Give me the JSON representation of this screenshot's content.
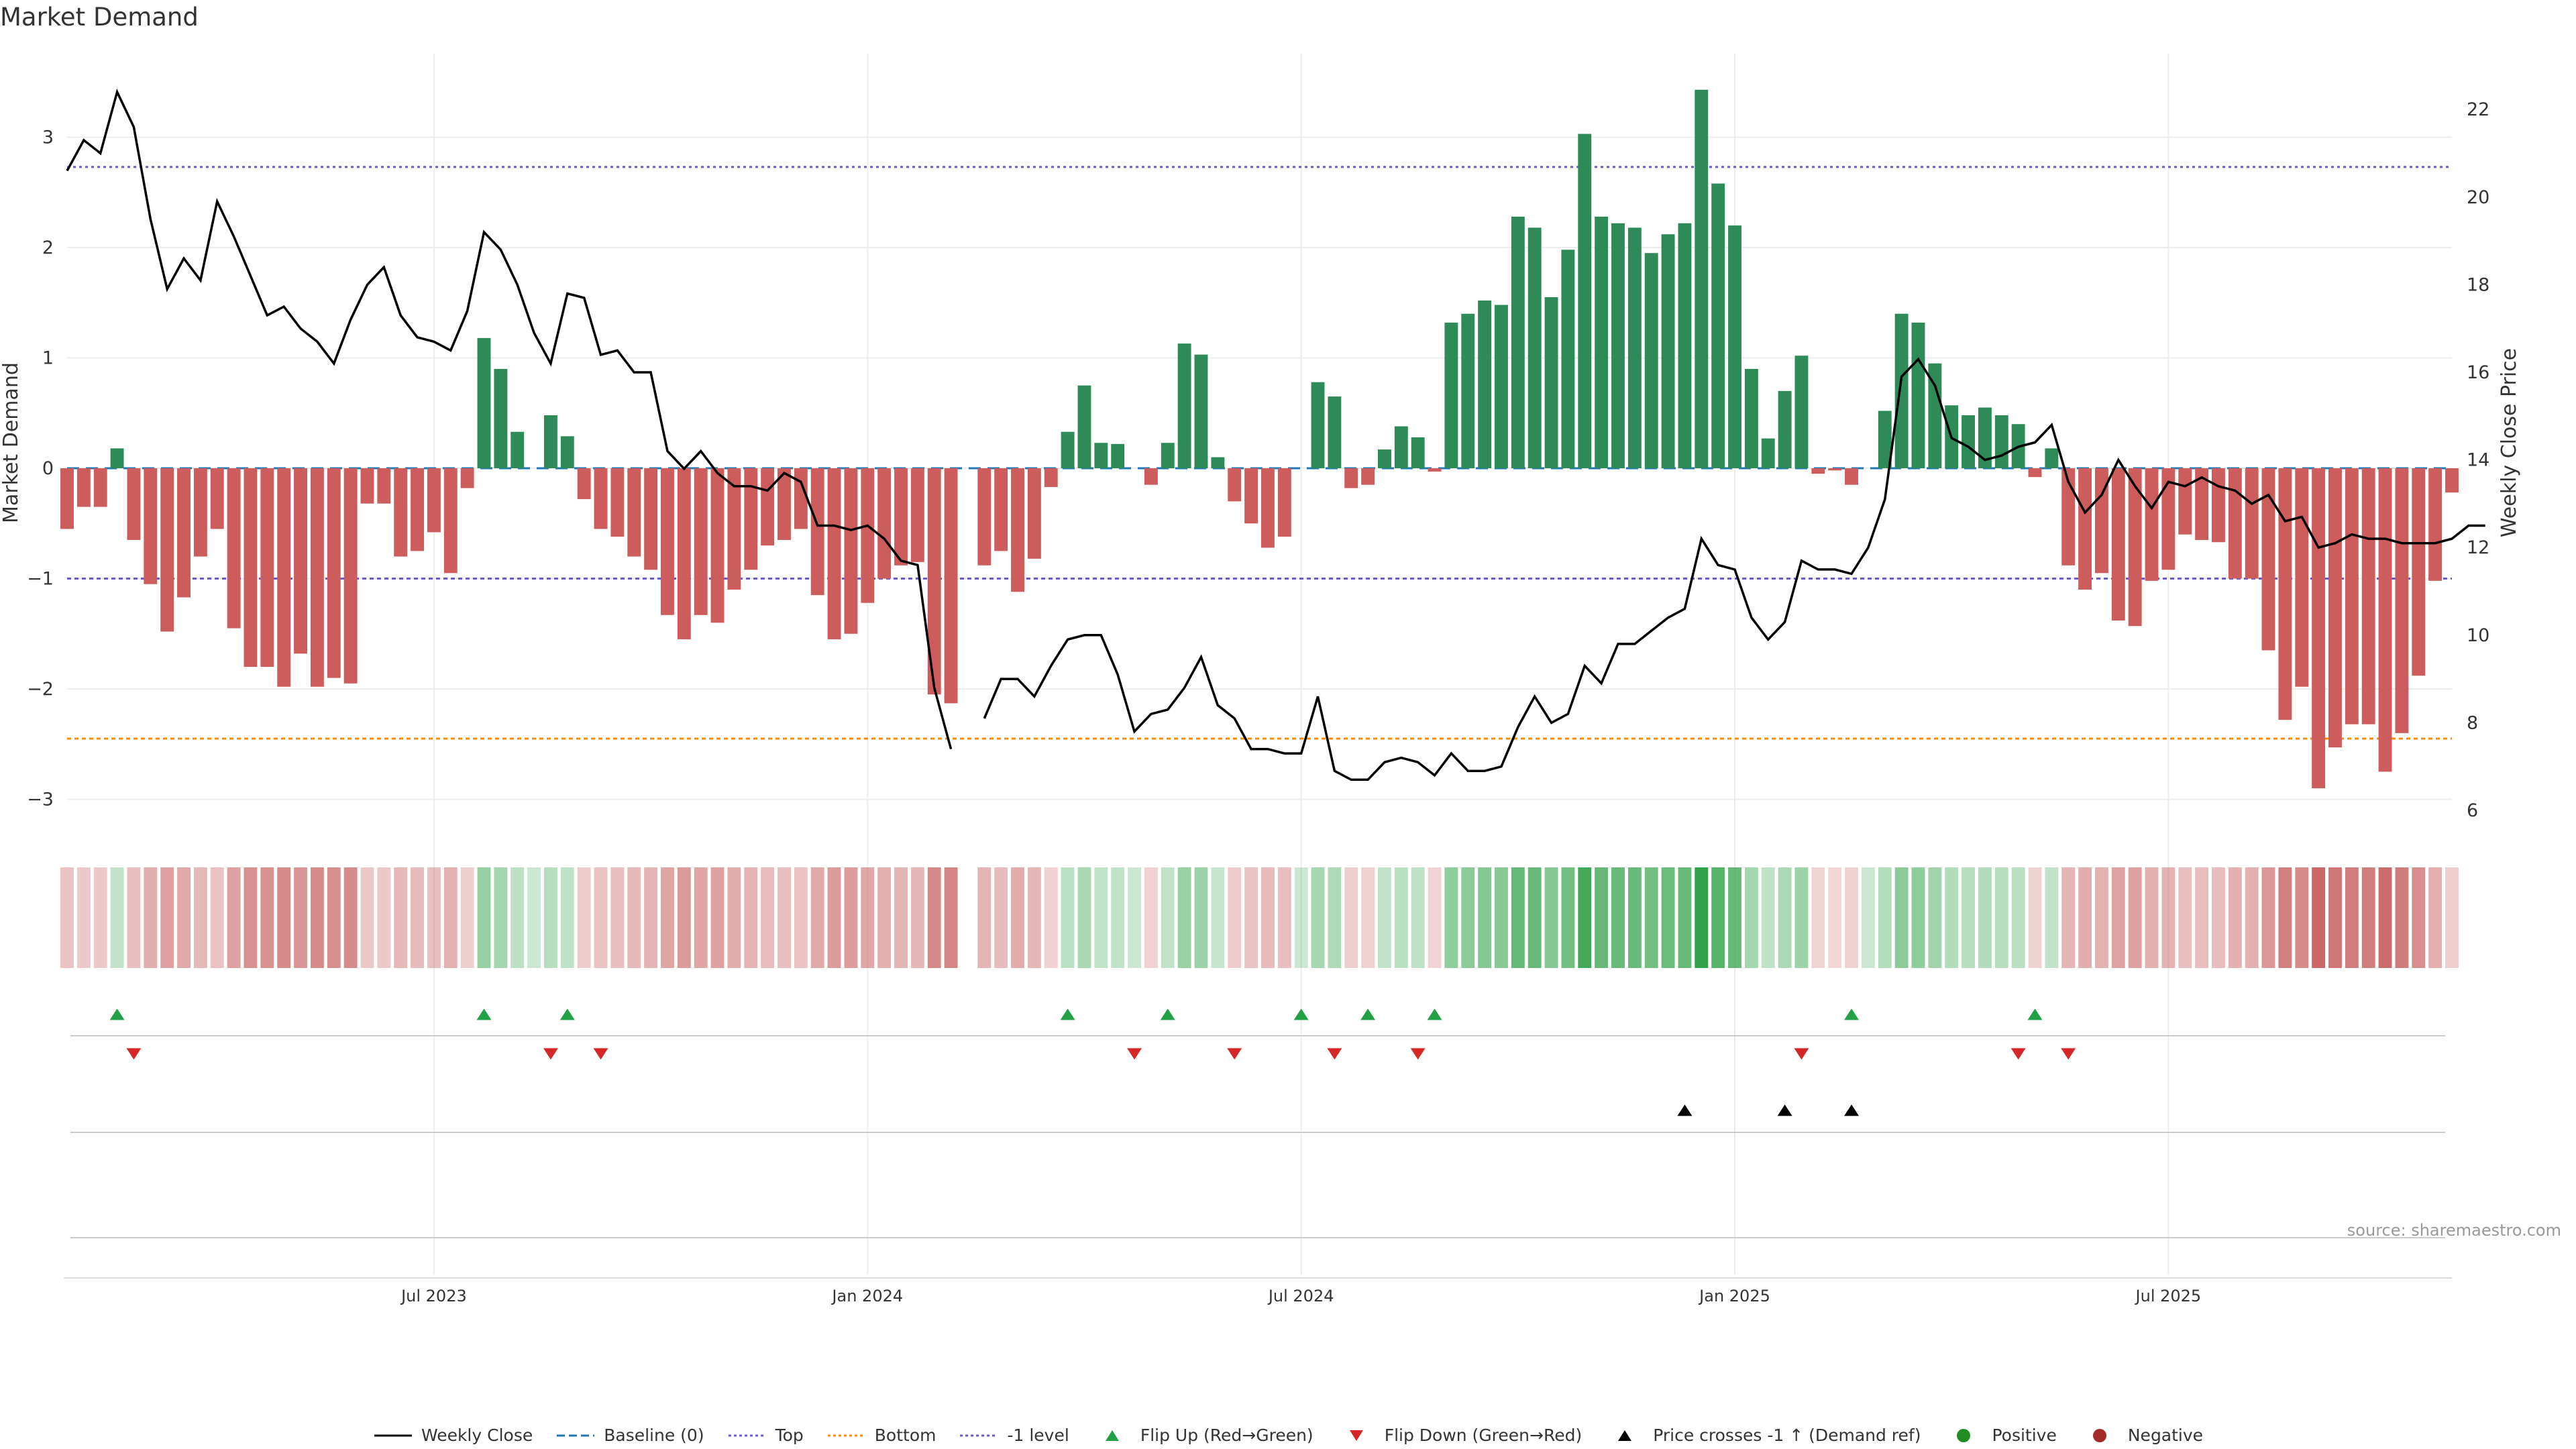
{
  "title": "Market Demand",
  "source": "source: sharemaestro.com",
  "colors": {
    "positive": "#2e8b57",
    "negative": "#cd5c5c",
    "flip_up": "#22a045",
    "flip_down": "#d62728",
    "cross": "#000000",
    "top_line": "#6a5acd",
    "bottom_line": "#ff8c00",
    "level_line": "#6a5acd",
    "baseline": "#1f77b4"
  },
  "chart_data": {
    "type": "bar",
    "title": "Market Demand",
    "ylabel": "Market Demand",
    "ylabel_right": "Weekly Close Price",
    "ylim": [
      -3.2,
      3.6
    ],
    "ylim_right": [
      6,
      23.2
    ],
    "yticks": [
      3,
      2,
      1,
      0,
      -1,
      -2,
      -3
    ],
    "yticks_right": [
      22,
      20,
      18,
      16,
      14,
      12,
      10,
      8,
      6
    ],
    "x_start_week": 0,
    "x_end_week": 143,
    "xticks": [
      {
        "week": 22,
        "label": "Jul 2023"
      },
      {
        "week": 48,
        "label": "Jan 2024"
      },
      {
        "week": 74,
        "label": "Jul 2024"
      },
      {
        "week": 100,
        "label": "Jan 2025"
      },
      {
        "week": 126,
        "label": "Jul 2025"
      }
    ],
    "reference_lines": {
      "top": 2.73,
      "bottom": -2.45,
      "level": -1,
      "baseline": 0
    },
    "grid": true,
    "legend_position": "bottom-center",
    "series": [
      {
        "name": "Market Demand",
        "values": [
          -0.55,
          -0.35,
          -0.35,
          0.18,
          -0.65,
          -1.05,
          -1.48,
          -1.17,
          -0.8,
          -0.55,
          -1.45,
          -1.8,
          -1.8,
          -1.98,
          -1.68,
          -1.98,
          -1.9,
          -1.95,
          -0.32,
          -0.32,
          -0.8,
          -0.75,
          -0.58,
          -0.95,
          -0.18,
          1.18,
          0.9,
          0.33,
          0,
          0.48,
          0.29,
          -0.28,
          -0.55,
          -0.62,
          -0.8,
          -0.92,
          -1.33,
          -1.55,
          -1.33,
          -1.4,
          -1.1,
          -0.92,
          -0.7,
          -0.65,
          -0.55,
          -1.15,
          -1.55,
          -1.5,
          -1.22,
          -1.0,
          -0.88,
          -0.85,
          -2.05,
          -2.13,
          null,
          -0.88,
          -0.75,
          -1.12,
          -0.82,
          -0.17,
          0.33,
          0.75,
          0.23,
          0.22,
          0,
          -0.15,
          0.23,
          1.13,
          1.03,
          0.1,
          -0.3,
          -0.5,
          -0.72,
          -0.62,
          0,
          0.78,
          0.65,
          -0.18,
          -0.15,
          0.17,
          0.38,
          0.28,
          -0.03,
          1.32,
          1.4,
          1.52,
          1.48,
          2.28,
          2.18,
          1.55,
          1.98,
          3.03,
          2.28,
          2.22,
          2.18,
          1.95,
          2.12,
          2.22,
          3.43,
          2.58,
          2.2,
          0.9,
          0.27,
          0.7,
          1.02,
          -0.05,
          -0.02,
          -0.15,
          0,
          0.52,
          1.4,
          1.32,
          0.95,
          0.57,
          0.48,
          0.55,
          0.48,
          0.4,
          -0.08,
          0.18,
          -0.88,
          -1.1,
          -0.95,
          -1.38,
          -1.43,
          -1.02,
          -0.92,
          -0.6,
          -0.65,
          -0.67,
          -1.0,
          -1.0,
          -1.65,
          -2.28,
          -1.98,
          -2.9,
          -2.53,
          -2.32,
          -2.32,
          -2.75,
          -2.4,
          -1.88,
          -1.02,
          -0.22
        ]
      },
      {
        "name": "Weekly Close",
        "values": [
          20.6,
          21.3,
          21.0,
          22.4,
          21.6,
          19.5,
          17.9,
          18.6,
          18.1,
          19.9,
          19.1,
          18.2,
          17.3,
          17.5,
          17.0,
          16.7,
          16.2,
          17.2,
          18.0,
          18.4,
          17.3,
          16.8,
          16.7,
          16.5,
          17.4,
          19.2,
          18.8,
          18.0,
          16.9,
          16.2,
          17.8,
          17.7,
          16.4,
          16.5,
          16.0,
          16.0,
          14.2,
          13.8,
          14.2,
          13.7,
          13.4,
          13.4,
          13.3,
          13.7,
          13.5,
          12.5,
          12.5,
          12.4,
          12.5,
          12.2,
          11.7,
          11.6,
          8.8,
          7.4,
          null,
          8.1,
          9.0,
          9.0,
          8.6,
          9.3,
          9.9,
          10.0,
          10.0,
          9.1,
          7.8,
          8.2,
          8.3,
          8.8,
          9.5,
          8.4,
          8.1,
          7.4,
          7.4,
          7.3,
          7.3,
          8.6,
          6.9,
          6.7,
          6.7,
          7.1,
          7.2,
          7.1,
          6.8,
          7.3,
          6.9,
          6.9,
          7.0,
          7.9,
          8.6,
          8.0,
          8.2,
          9.3,
          8.9,
          9.8,
          9.8,
          10.1,
          10.4,
          10.6,
          12.2,
          11.6,
          11.5,
          10.4,
          9.9,
          10.3,
          11.7,
          11.5,
          11.5,
          11.4,
          12.0,
          13.1,
          15.9,
          16.3,
          15.7,
          14.5,
          14.3,
          14.0,
          14.1,
          14.3,
          14.4,
          14.8,
          13.5,
          12.8,
          13.2,
          14.0,
          13.4,
          12.9,
          13.5,
          13.4,
          13.6,
          13.4,
          13.3,
          13.0,
          13.2,
          12.6,
          12.7,
          12.0,
          12.1,
          12.3,
          12.2,
          12.2,
          12.1,
          12.1,
          12.1,
          12.2,
          12.5,
          12.5
        ]
      }
    ],
    "flip_up_weeks": [
      3,
      25,
      30,
      60,
      66,
      74,
      78,
      82,
      107,
      118
    ],
    "flip_down_weeks": [
      4,
      29,
      32,
      64,
      70,
      76,
      81,
      104,
      117,
      120
    ],
    "price_cross_weeks": [
      97,
      103,
      107
    ],
    "legend": [
      {
        "label": "Weekly Close",
        "symbol": "line-solid-black"
      },
      {
        "label": "Baseline (0)",
        "symbol": "line-dashed-blue"
      },
      {
        "label": "Top",
        "symbol": "line-dotted-purple"
      },
      {
        "label": "Bottom",
        "symbol": "line-dotted-orange"
      },
      {
        "label": "-1 level",
        "symbol": "line-dotted-purple"
      },
      {
        "label": "Flip Up (Red→Green)",
        "symbol": "triangle-up-green"
      },
      {
        "label": "Flip Down (Green→Red)",
        "symbol": "triangle-down-red"
      },
      {
        "label": "Price crosses -1 ↑ (Demand ref)",
        "symbol": "triangle-up-black"
      },
      {
        "label": "Positive",
        "symbol": "circle-green"
      },
      {
        "label": "Negative",
        "symbol": "circle-red"
      }
    ]
  }
}
